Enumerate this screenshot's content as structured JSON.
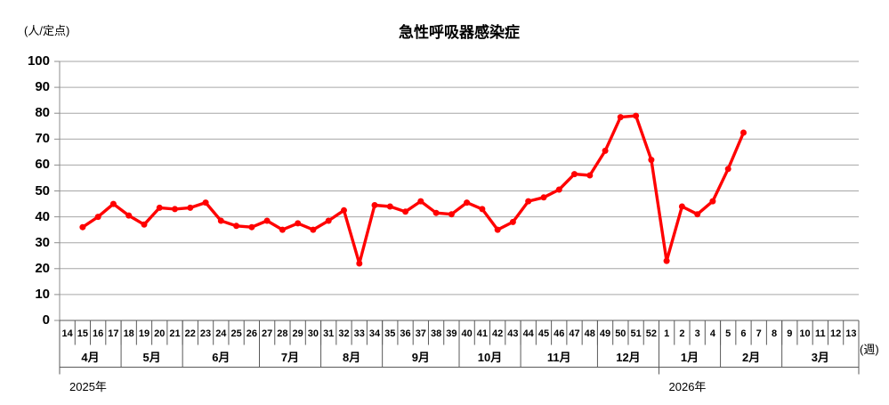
{
  "chart_data": {
    "type": "line",
    "title": "急性呼吸器感染症",
    "y_axis_label": "(人/定点)",
    "x_axis_unit_label": "(週)",
    "ylim": [
      0,
      100
    ],
    "y_ticks": [
      0,
      10,
      20,
      30,
      40,
      50,
      60,
      70,
      80,
      90,
      100
    ],
    "grid": true,
    "legend": "none",
    "colors": {
      "line": "#FF0000",
      "gridline": "#A6A6A6",
      "axis": "#8C8C8C",
      "table": "#595959",
      "text": "#000000"
    },
    "weeks": [
      14,
      15,
      16,
      17,
      18,
      19,
      20,
      21,
      22,
      23,
      24,
      25,
      26,
      27,
      28,
      29,
      30,
      31,
      32,
      33,
      34,
      35,
      36,
      37,
      38,
      39,
      40,
      41,
      42,
      43,
      44,
      45,
      46,
      47,
      48,
      49,
      50,
      51,
      52,
      1,
      2,
      3,
      4,
      5,
      6,
      7,
      8,
      9,
      10,
      11,
      12,
      13
    ],
    "values": [
      null,
      36,
      40,
      45,
      40.5,
      37,
      43.5,
      43,
      43.5,
      45.5,
      38.5,
      36.5,
      36,
      38.5,
      35,
      37.5,
      35,
      38.5,
      42.5,
      22,
      44.5,
      44,
      42,
      46,
      41.5,
      41,
      45.5,
      43,
      35,
      38,
      46,
      47.5,
      50.5,
      56.5,
      56,
      65.5,
      78.5,
      79,
      62,
      23,
      44,
      41,
      46,
      58.5,
      72.5,
      null,
      null,
      null,
      null,
      null,
      null,
      null
    ],
    "months": [
      {
        "label": "4月",
        "span": 4
      },
      {
        "label": "5月",
        "span": 4
      },
      {
        "label": "6月",
        "span": 5
      },
      {
        "label": "7月",
        "span": 4
      },
      {
        "label": "8月",
        "span": 4
      },
      {
        "label": "9月",
        "span": 5
      },
      {
        "label": "10月",
        "span": 4
      },
      {
        "label": "11月",
        "span": 5
      },
      {
        "label": "12月",
        "span": 4
      },
      {
        "label": "1月",
        "span": 4
      },
      {
        "label": "2月",
        "span": 4
      },
      {
        "label": "3月",
        "span": 5
      }
    ],
    "years": [
      {
        "label": "2025年",
        "span": 39
      },
      {
        "label": "2026年",
        "span": 13
      }
    ]
  }
}
